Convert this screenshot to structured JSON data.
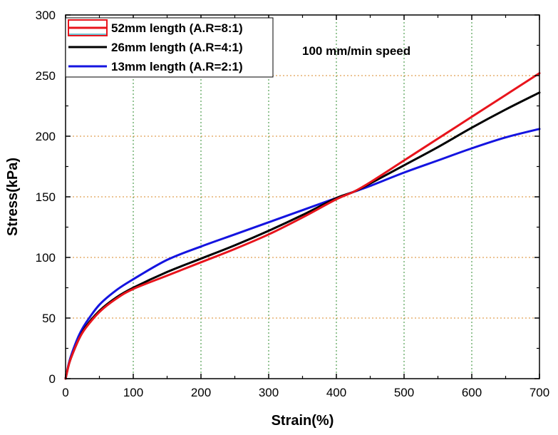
{
  "chart_data": {
    "type": "line",
    "title": "",
    "xlabel": "Strain(%)",
    "ylabel": "Stress(kPa)",
    "xlim": [
      0,
      700
    ],
    "ylim": [
      0,
      300
    ],
    "xticks": [
      0,
      100,
      200,
      300,
      400,
      500,
      600,
      700
    ],
    "yticks": [
      0,
      50,
      100,
      150,
      200,
      250,
      300
    ],
    "grid": true,
    "legend_position": "top-left",
    "annotation": "100 mm/min speed",
    "series": [
      {
        "name": "52mm length (A.R=8:1)",
        "color": "#e8141c",
        "x": [
          0,
          5,
          10,
          20,
          30,
          50,
          75,
          100,
          150,
          200,
          250,
          300,
          350,
          400,
          425,
          450,
          500,
          550,
          600,
          650,
          700
        ],
        "y": [
          0,
          12,
          20,
          33,
          42,
          55,
          66,
          74,
          85,
          96,
          107,
          119,
          133,
          148,
          154,
          162,
          180,
          198,
          216,
          234,
          252
        ]
      },
      {
        "name": "26mm length (A.R=4:1)",
        "color": "#000000",
        "x": [
          0,
          5,
          10,
          20,
          30,
          50,
          75,
          100,
          150,
          200,
          250,
          300,
          350,
          400,
          425,
          450,
          500,
          550,
          600,
          650,
          700
        ],
        "y": [
          0,
          12,
          20,
          33,
          43,
          56,
          67,
          75,
          88,
          99,
          110,
          122,
          135,
          149,
          154,
          161,
          176,
          191,
          207,
          222,
          236
        ]
      },
      {
        "name": "13mm length (A.R=2:1)",
        "color": "#1414e0",
        "x": [
          0,
          5,
          10,
          20,
          30,
          50,
          75,
          100,
          150,
          200,
          250,
          300,
          350,
          400,
          425,
          450,
          500,
          550,
          600,
          650,
          700
        ],
        "y": [
          0,
          13,
          22,
          36,
          46,
          61,
          73,
          82,
          98,
          109,
          119,
          129,
          139,
          149,
          154,
          159,
          170,
          180,
          190,
          199,
          206
        ]
      }
    ]
  },
  "colors": {
    "grid": "#2e8b2e",
    "grid_h": "#d98a2a",
    "axis": "#000000"
  }
}
